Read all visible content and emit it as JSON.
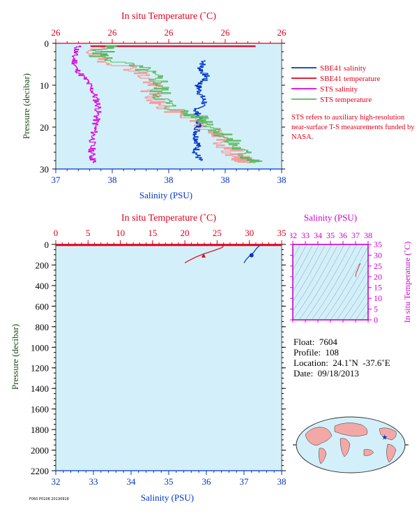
{
  "chart_data": [
    {
      "type": "line",
      "top_axis_label": "In situ Temperature (˚C)",
      "top_axis_ticks": [
        "26",
        "26",
        "26",
        "26",
        "26"
      ],
      "xlabel": "Salinity (PSU)",
      "x_ticks": [
        "37",
        "38",
        "38",
        "38",
        "38"
      ],
      "ylabel": "Pressure (decibar)",
      "y_ticks": [
        "0",
        "10",
        "20",
        "30"
      ],
      "ylim": [
        0,
        30
      ],
      "y_inverted": true,
      "series": [
        {
          "name": "SBE41 salinity",
          "color": "#0033cc",
          "axis": "salinity",
          "points": [
            [
              37.66,
              4
            ],
            [
              37.64,
              6
            ],
            [
              37.67,
              8
            ],
            [
              37.63,
              10
            ],
            [
              37.64,
              12
            ],
            [
              37.66,
              14
            ],
            [
              37.62,
              16
            ],
            [
              37.64,
              18
            ],
            [
              37.63,
              20
            ],
            [
              37.62,
              22
            ],
            [
              37.63,
              24
            ],
            [
              37.62,
              26
            ],
            [
              37.64,
              28
            ]
          ]
        },
        {
          "name": "SBE41 temperature",
          "color": "#e0001b",
          "axis": "temperature",
          "points": [
            [
              25.9,
              0.7
            ],
            [
              26.85,
              0.7
            ]
          ]
        },
        {
          "name": "STS salinity",
          "color": "#dd00dd",
          "axis": "salinity",
          "points": [
            [
              37.1,
              0.5
            ],
            [
              37.08,
              3
            ],
            [
              37.09,
              6
            ],
            [
              37.14,
              9
            ],
            [
              37.17,
              12
            ],
            [
              37.19,
              15
            ],
            [
              37.18,
              18
            ],
            [
              37.17,
              21
            ],
            [
              37.16,
              24
            ],
            [
              37.16,
              27
            ],
            [
              37.17,
              28.5
            ]
          ]
        },
        {
          "name": "STS temperature",
          "color": "#5cb85c",
          "axis": "temperature",
          "points": [
            [
              26.0,
              0.5
            ],
            [
              25.95,
              3
            ],
            [
              26.2,
              6
            ],
            [
              26.3,
              9
            ],
            [
              26.3,
              12
            ],
            [
              26.35,
              15
            ],
            [
              26.55,
              18
            ],
            [
              26.65,
              21
            ],
            [
              26.72,
              24
            ],
            [
              26.8,
              27
            ],
            [
              26.85,
              28.5
            ]
          ]
        }
      ],
      "legend": [
        "SBE41 salinity",
        "SBE41 temperature",
        "STS salinity",
        "STS temperature"
      ],
      "legend_position": "right",
      "note": "STS refers to auxiliary high-resolution near-surface T-S measurements funded by NASA."
    },
    {
      "type": "line",
      "top_axis_label": "In situ Temperature (˚C)",
      "top_axis_ticks": [
        "0",
        "5",
        "10",
        "15",
        "20",
        "25",
        "30",
        "35"
      ],
      "top_axis_range": [
        0,
        35
      ],
      "xlabel": "Salinity (PSU)",
      "x_ticks": [
        "32",
        "33",
        "34",
        "35",
        "36",
        "37",
        "38"
      ],
      "xlim": [
        32,
        38
      ],
      "ylabel": "Pressure (decibar)",
      "y_ticks": [
        "0",
        "200",
        "400",
        "600",
        "800",
        "1000",
        "1200",
        "1400",
        "1600",
        "1800",
        "2000",
        "2200"
      ],
      "ylim": [
        0,
        2200
      ],
      "y_inverted": true,
      "series": [
        {
          "name": "temperature",
          "color": "#e0001b",
          "axis": "temperature",
          "points": [
            [
              26.1,
              2
            ],
            [
              26.0,
              10
            ],
            [
              25.8,
              30
            ],
            [
              24.5,
              60
            ],
            [
              23.0,
              90
            ],
            [
              21.8,
              120
            ],
            [
              20.5,
              160
            ],
            [
              20.0,
              180
            ]
          ]
        },
        {
          "name": "salinity",
          "color": "#0033cc",
          "axis": "salinity",
          "points": [
            [
              37.42,
              2
            ],
            [
              37.4,
              15
            ],
            [
              37.33,
              40
            ],
            [
              37.25,
              80
            ],
            [
              37.15,
              110
            ],
            [
              37.05,
              150
            ],
            [
              37.0,
              180
            ]
          ]
        }
      ],
      "markers": [
        {
          "series": "temperature",
          "value": 22.9,
          "pressure": 110
        },
        {
          "series": "salinity",
          "value": 37.2,
          "pressure": 105
        }
      ]
    },
    {
      "type": "scatter",
      "top_axis_label": "Salinity (PSU)",
      "x_ticks": [
        "32",
        "33",
        "34",
        "35",
        "36",
        "37",
        "38"
      ],
      "xlim": [
        32,
        38
      ],
      "ylabel": "In situ Temperature (˚C)",
      "y_ticks": [
        "0",
        "5",
        "10",
        "15",
        "20",
        "25",
        "30",
        "35"
      ],
      "ylim": [
        0,
        35
      ],
      "points": [
        [
          37.0,
          20.0
        ],
        [
          37.05,
          21.8
        ],
        [
          37.15,
          23.0
        ],
        [
          37.25,
          24.5
        ],
        [
          37.33,
          25.8
        ],
        [
          37.4,
          26.0
        ],
        [
          37.42,
          26.1
        ]
      ]
    }
  ],
  "float_info": {
    "float": "Float:  7604",
    "profile": "Profile:  108",
    "location": "Location:  24.1˚N  -37.6˚E",
    "date": "Date:  09/18/2013"
  },
  "map": {
    "marker_lat": 24.1,
    "marker_lon": -37.6
  },
  "footer_code": "F060 P0108 20130918",
  "colors": {
    "plot_bg": "#d3f0fa",
    "temperature": "#e0001b",
    "salinity": "#0033cc",
    "sts_salinity": "#dd00dd",
    "sts_temperature": "#5cb85c",
    "pressure_label": "#1c4a1c",
    "ts_axis": "#cc00cc"
  }
}
